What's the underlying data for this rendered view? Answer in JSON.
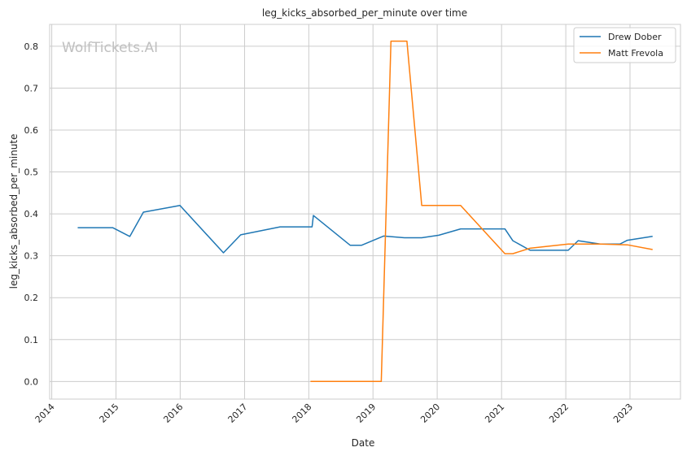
{
  "chart_data": {
    "type": "line",
    "title": "leg_kicks_absorbed_per_minute over time",
    "xlabel": "Date",
    "ylabel": "leg_kicks_absorbed_per_minute",
    "watermark": "WolfTickets.AI",
    "x_ticks": [
      "2014",
      "2015",
      "2016",
      "2017",
      "2018",
      "2019",
      "2020",
      "2021",
      "2022",
      "2023"
    ],
    "y_ticks": [
      "0.0",
      "0.1",
      "0.2",
      "0.3",
      "0.4",
      "0.5",
      "0.6",
      "0.7",
      "0.8"
    ],
    "xlim": [
      "2013-12-20",
      "2023-10-15"
    ],
    "ylim": [
      -0.042,
      0.852
    ],
    "grid": true,
    "legend_position": "top-right",
    "series": [
      {
        "name": "Drew Dober",
        "color": "#1f77b4",
        "points": [
          [
            "2014-06-01",
            0.367
          ],
          [
            "2014-12-13",
            0.367
          ],
          [
            "2015-03-21",
            0.346
          ],
          [
            "2015-06-06",
            0.404
          ],
          [
            "2015-12-31",
            0.42
          ],
          [
            "2016-09-03",
            0.307
          ],
          [
            "2016-12-10",
            0.35
          ],
          [
            "2017-07-22",
            0.369
          ],
          [
            "2018-01-20",
            0.369
          ],
          [
            "2018-01-27",
            0.396
          ],
          [
            "2018-08-25",
            0.325
          ],
          [
            "2018-10-27",
            0.325
          ],
          [
            "2019-03-02",
            0.347
          ],
          [
            "2019-06-29",
            0.343
          ],
          [
            "2019-10-05",
            0.343
          ],
          [
            "2020-01-10",
            0.349
          ],
          [
            "2020-05-13",
            0.364
          ],
          [
            "2021-01-20",
            0.364
          ],
          [
            "2021-03-06",
            0.336
          ],
          [
            "2021-06-12",
            0.313
          ],
          [
            "2022-01-15",
            0.313
          ],
          [
            "2022-03-12",
            0.336
          ],
          [
            "2022-07-16",
            0.328
          ],
          [
            "2022-11-05",
            0.328
          ],
          [
            "2022-12-17",
            0.337
          ],
          [
            "2023-05-06",
            0.346
          ]
        ]
      },
      {
        "name": "Matt Frevola",
        "color": "#ff7f0e",
        "points": [
          [
            "2018-01-14",
            0.0
          ],
          [
            "2019-02-17",
            0.0
          ],
          [
            "2019-04-13",
            0.812
          ],
          [
            "2019-07-13",
            0.812
          ],
          [
            "2019-10-05",
            0.42
          ],
          [
            "2020-05-13",
            0.42
          ],
          [
            "2021-01-20",
            0.305
          ],
          [
            "2021-03-06",
            0.305
          ],
          [
            "2021-06-12",
            0.318
          ],
          [
            "2022-01-15",
            0.328
          ],
          [
            "2022-07-16",
            0.328
          ],
          [
            "2022-12-17",
            0.326
          ],
          [
            "2023-05-06",
            0.315
          ]
        ]
      }
    ]
  }
}
